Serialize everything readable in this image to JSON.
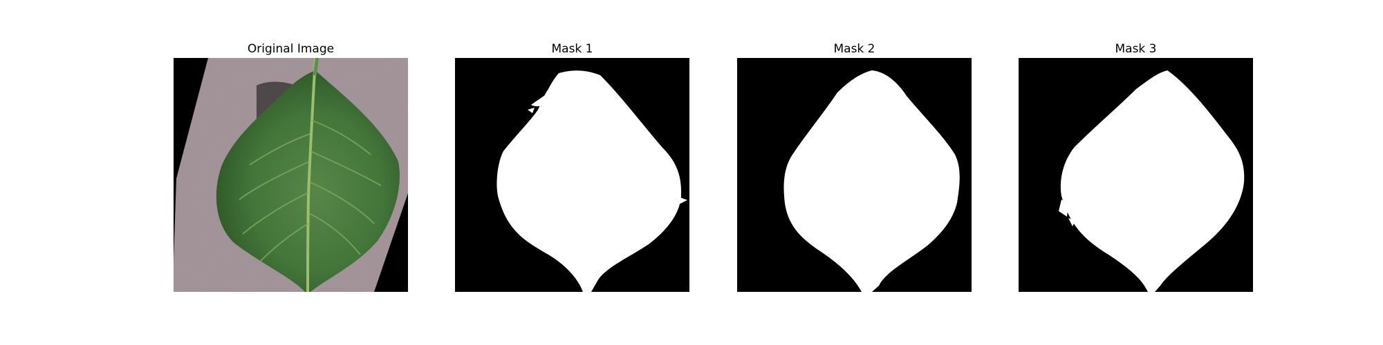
{
  "figure": {
    "panels": [
      {
        "title": "Original Image",
        "kind": "photo",
        "subject": "green-leaf-on-gray-background"
      },
      {
        "title": "Mask 1",
        "kind": "mask"
      },
      {
        "title": "Mask 2",
        "kind": "mask"
      },
      {
        "title": "Mask 3",
        "kind": "mask"
      }
    ]
  },
  "colors": {
    "mask_background": "#000000",
    "mask_foreground": "#ffffff",
    "photo_background_surface": "#a8999e",
    "leaf_dark": "#2f5a2a",
    "leaf_mid": "#4e7f43",
    "leaf_vein": "#9cbf6e"
  }
}
